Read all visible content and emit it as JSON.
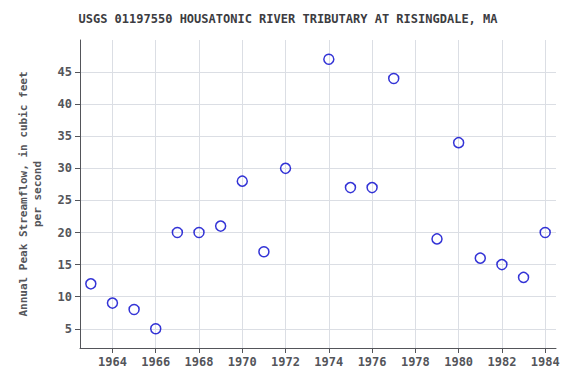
{
  "chart_data": {
    "type": "scatter",
    "title": "USGS 01197550 HOUSATONIC RIVER TRIBUTARY AT RISINGDALE, MA",
    "ylabel": "Annual Peak Streamflow, in cubic feet\nper second",
    "x": [
      1963,
      1964,
      1965,
      1966,
      1967,
      1968,
      1969,
      1970,
      1971,
      1972,
      1974,
      1975,
      1976,
      1977,
      1979,
      1980,
      1981,
      1982,
      1983,
      1984
    ],
    "values": [
      12,
      9,
      8,
      5,
      20,
      20,
      21,
      28,
      17,
      30,
      47,
      27,
      27,
      44,
      19,
      34,
      16,
      15,
      13,
      20
    ],
    "xlim": [
      1962.5,
      1984.5
    ],
    "ylim": [
      2,
      50
    ],
    "xticks": [
      1964,
      1966,
      1968,
      1970,
      1972,
      1974,
      1976,
      1978,
      1980,
      1982,
      1984
    ],
    "yticks": [
      5,
      10,
      15,
      20,
      25,
      30,
      35,
      40,
      45
    ],
    "color": "#0000CC",
    "marker": "circle",
    "grid": true
  }
}
